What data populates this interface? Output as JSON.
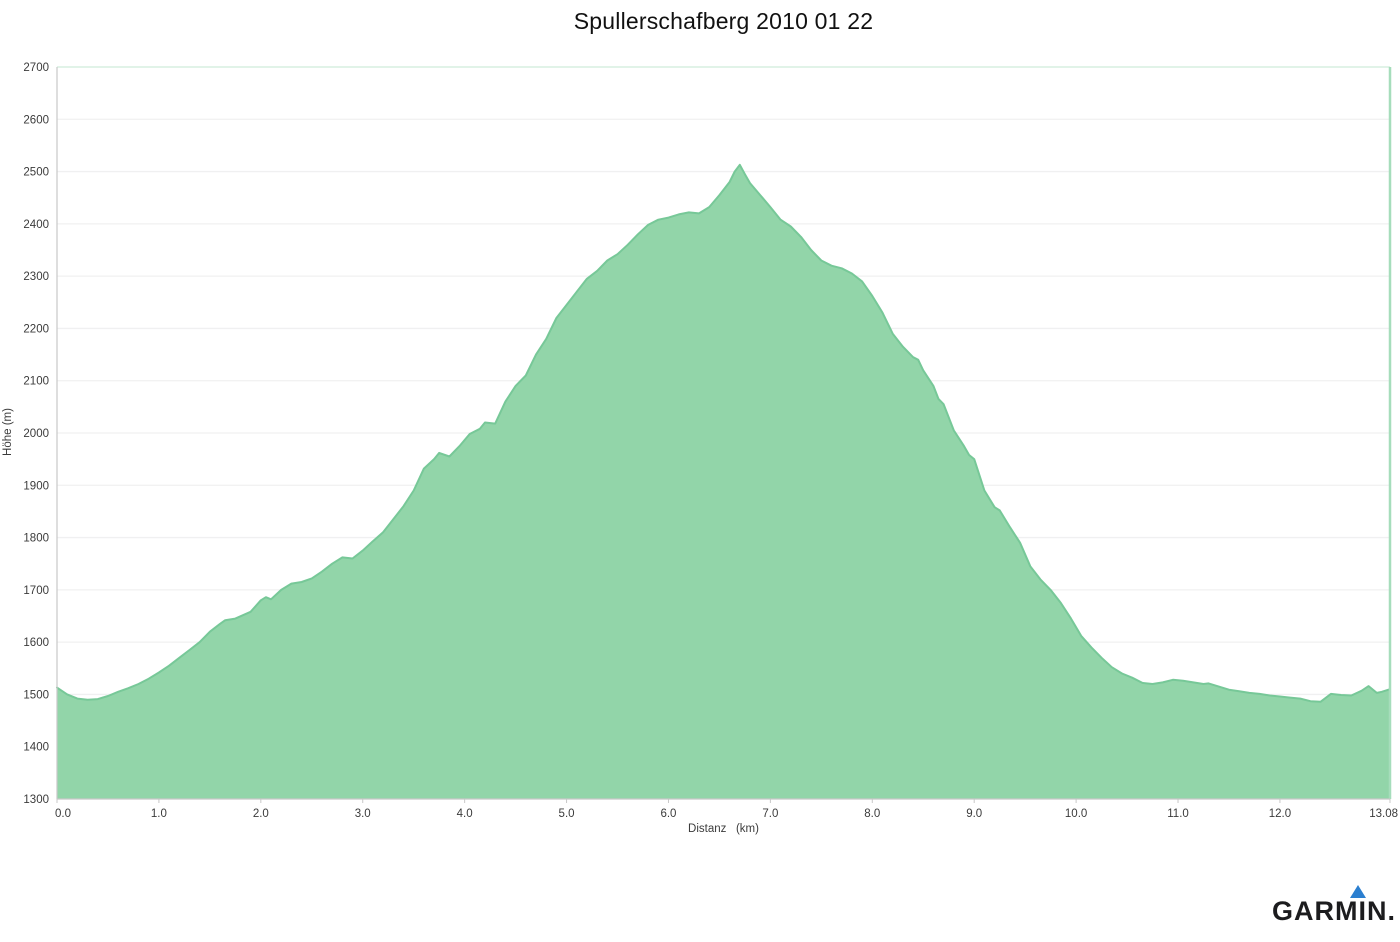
{
  "header": {
    "title": "Spullerschafberg 2010 01 22"
  },
  "logo": {
    "text": "GARMIN.",
    "triangle_icon": "garmin-delta",
    "triangle_color": "#2b7fd0"
  },
  "chart_data": {
    "type": "area",
    "title": "Spullerschafberg 2010 01 22",
    "xlabel": "Distanz   (km)",
    "ylabel": "Höhe (m)",
    "xlim": [
      0,
      13.08
    ],
    "ylim": [
      1300,
      2700
    ],
    "grid": "horizontal-only",
    "legend_position": "none",
    "x_ticks": [
      0,
      1,
      2,
      3,
      4,
      5,
      6,
      7,
      8,
      9,
      10,
      11,
      12,
      13.08
    ],
    "x_tick_labels": [
      "0.0",
      "1.0",
      "2.0",
      "3.0",
      "4.0",
      "5.0",
      "6.0",
      "7.0",
      "8.0",
      "9.0",
      "10.0",
      "11.0",
      "12.0",
      "13.08"
    ],
    "y_ticks": [
      1300,
      1400,
      1500,
      1600,
      1700,
      1800,
      1900,
      2000,
      2100,
      2200,
      2300,
      2400,
      2500,
      2600,
      2700
    ],
    "series": [
      {
        "name": "Höhe",
        "x": [
          0.0,
          0.1,
          0.2,
          0.3,
          0.4,
          0.5,
          0.6,
          0.7,
          0.8,
          0.9,
          1.0,
          1.1,
          1.2,
          1.3,
          1.4,
          1.5,
          1.6,
          1.65,
          1.75,
          1.9,
          2.0,
          2.05,
          2.1,
          2.2,
          2.3,
          2.4,
          2.5,
          2.6,
          2.7,
          2.8,
          2.9,
          3.0,
          3.1,
          3.2,
          3.3,
          3.4,
          3.5,
          3.6,
          3.7,
          3.75,
          3.85,
          3.95,
          4.05,
          4.15,
          4.2,
          4.3,
          4.4,
          4.5,
          4.6,
          4.7,
          4.8,
          4.9,
          5.0,
          5.1,
          5.2,
          5.3,
          5.4,
          5.5,
          5.6,
          5.7,
          5.8,
          5.9,
          6.0,
          6.1,
          6.2,
          6.3,
          6.4,
          6.5,
          6.6,
          6.65,
          6.7,
          6.75,
          6.8,
          6.9,
          7.0,
          7.1,
          7.2,
          7.3,
          7.4,
          7.5,
          7.6,
          7.7,
          7.8,
          7.9,
          8.0,
          8.1,
          8.2,
          8.3,
          8.4,
          8.45,
          8.5,
          8.6,
          8.65,
          8.7,
          8.8,
          8.9,
          8.95,
          9.0,
          9.1,
          9.2,
          9.25,
          9.35,
          9.45,
          9.55,
          9.65,
          9.75,
          9.85,
          9.95,
          10.05,
          10.15,
          10.25,
          10.35,
          10.45,
          10.55,
          10.65,
          10.75,
          10.85,
          10.95,
          11.05,
          11.15,
          11.25,
          11.3,
          11.4,
          11.5,
          11.6,
          11.7,
          11.8,
          11.9,
          12.0,
          12.1,
          12.2,
          12.3,
          12.4,
          12.5,
          12.6,
          12.7,
          12.8,
          12.87,
          12.95,
          13.0,
          13.08
        ],
        "y": [
          1513,
          1500,
          1492,
          1490,
          1491,
          1497,
          1505,
          1512,
          1520,
          1530,
          1542,
          1555,
          1570,
          1585,
          1600,
          1620,
          1635,
          1642,
          1645,
          1658,
          1680,
          1686,
          1682,
          1700,
          1712,
          1715,
          1722,
          1735,
          1750,
          1762,
          1760,
          1775,
          1793,
          1810,
          1835,
          1860,
          1890,
          1932,
          1950,
          1962,
          1955,
          1975,
          1998,
          2008,
          2020,
          2018,
          2060,
          2090,
          2110,
          2150,
          2180,
          2220,
          2245,
          2270,
          2295,
          2310,
          2330,
          2342,
          2360,
          2380,
          2398,
          2408,
          2412,
          2418,
          2422,
          2420,
          2432,
          2455,
          2480,
          2500,
          2513,
          2495,
          2478,
          2455,
          2432,
          2408,
          2395,
          2375,
          2350,
          2330,
          2320,
          2315,
          2305,
          2290,
          2262,
          2230,
          2190,
          2165,
          2145,
          2140,
          2120,
          2090,
          2065,
          2055,
          2005,
          1975,
          1958,
          1950,
          1890,
          1858,
          1852,
          1820,
          1790,
          1745,
          1720,
          1700,
          1675,
          1645,
          1612,
          1590,
          1570,
          1552,
          1540,
          1532,
          1522,
          1520,
          1523,
          1528,
          1526,
          1523,
          1520,
          1521,
          1515,
          1509,
          1506,
          1503,
          1501,
          1498,
          1496,
          1494,
          1492,
          1487,
          1486,
          1501,
          1499,
          1498,
          1507,
          1516,
          1503,
          1505,
          1510
        ]
      }
    ],
    "colors": {
      "fill": "#92d5a9",
      "stroke": "#77c898",
      "grid": "#f0f0f1",
      "axis": "#c8c8c8",
      "tick_label": "#3b3b3b",
      "top_border": "#d7efe1",
      "right_border": "#a6ddbb"
    }
  }
}
